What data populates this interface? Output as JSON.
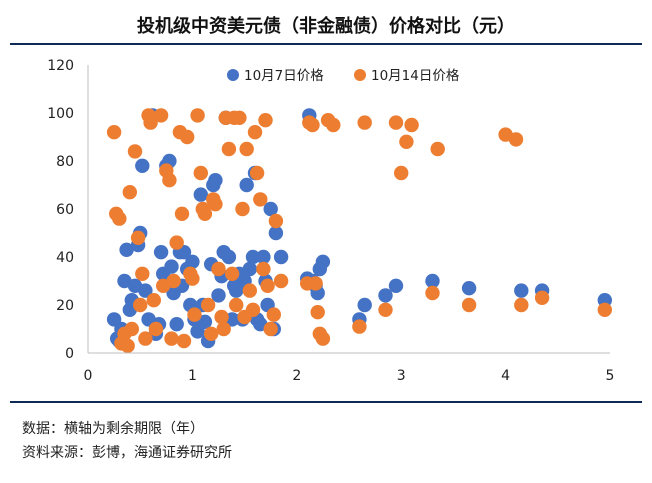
{
  "header": {
    "title": "投机级中资美元债（非金融债）价格对比（元）"
  },
  "footer": {
    "axis_note": "数据：横轴为剩余期限（年）",
    "source": "资料来源：彭博，海通证券研究所"
  },
  "colors": {
    "blue": "#4472c4",
    "orange": "#ed7d31",
    "rule": "#0d2b55",
    "axis": "#bfbfbf"
  },
  "chart_data": {
    "type": "scatter",
    "title": "",
    "xlabel": "",
    "ylabel": "",
    "xlim": [
      0,
      5
    ],
    "ylim": [
      0,
      120
    ],
    "x_ticks": [
      0,
      1,
      2,
      3,
      4,
      5
    ],
    "y_ticks": [
      0,
      20,
      40,
      60,
      80,
      100,
      120
    ],
    "grid": false,
    "legend_position": "top",
    "series": [
      {
        "name": "10月7日价格",
        "color": "#4472c4",
        "points": [
          [
            0.25,
            14
          ],
          [
            0.28,
            6
          ],
          [
            0.3,
            5
          ],
          [
            0.32,
            10
          ],
          [
            0.35,
            30
          ],
          [
            0.37,
            43
          ],
          [
            0.4,
            18
          ],
          [
            0.42,
            22
          ],
          [
            0.45,
            28
          ],
          [
            0.48,
            45
          ],
          [
            0.5,
            50
          ],
          [
            0.52,
            78
          ],
          [
            0.55,
            26
          ],
          [
            0.58,
            14
          ],
          [
            0.6,
            98
          ],
          [
            0.62,
            99
          ],
          [
            0.65,
            8
          ],
          [
            0.68,
            12
          ],
          [
            0.7,
            42
          ],
          [
            0.72,
            33
          ],
          [
            0.75,
            78
          ],
          [
            0.78,
            80
          ],
          [
            0.8,
            36
          ],
          [
            0.82,
            25
          ],
          [
            0.85,
            12
          ],
          [
            0.88,
            42
          ],
          [
            0.9,
            28
          ],
          [
            0.92,
            42
          ],
          [
            0.95,
            35
          ],
          [
            0.98,
            20
          ],
          [
            1.0,
            38
          ],
          [
            1.02,
            14
          ],
          [
            1.05,
            9
          ],
          [
            1.08,
            66
          ],
          [
            1.1,
            20
          ],
          [
            1.12,
            13
          ],
          [
            1.15,
            5
          ],
          [
            1.18,
            37
          ],
          [
            1.2,
            70
          ],
          [
            1.22,
            72
          ],
          [
            1.25,
            24
          ],
          [
            1.28,
            32
          ],
          [
            1.3,
            42
          ],
          [
            1.32,
            98
          ],
          [
            1.35,
            40
          ],
          [
            1.38,
            14
          ],
          [
            1.4,
            28
          ],
          [
            1.42,
            26
          ],
          [
            1.45,
            33
          ],
          [
            1.48,
            14
          ],
          [
            1.5,
            30
          ],
          [
            1.52,
            70
          ],
          [
            1.55,
            35
          ],
          [
            1.58,
            40
          ],
          [
            1.6,
            75
          ],
          [
            1.62,
            14
          ],
          [
            1.65,
            12
          ],
          [
            1.68,
            40
          ],
          [
            1.7,
            30
          ],
          [
            1.72,
            20
          ],
          [
            1.75,
            60
          ],
          [
            1.78,
            10
          ],
          [
            1.8,
            50
          ],
          [
            1.85,
            40
          ],
          [
            2.1,
            31
          ],
          [
            2.12,
            99
          ],
          [
            2.15,
            30
          ],
          [
            2.18,
            28
          ],
          [
            2.2,
            25
          ],
          [
            2.22,
            35
          ],
          [
            2.25,
            38
          ],
          [
            2.6,
            14
          ],
          [
            2.65,
            20
          ],
          [
            2.85,
            24
          ],
          [
            2.95,
            28
          ],
          [
            3.3,
            30
          ],
          [
            3.65,
            27
          ],
          [
            4.15,
            26
          ],
          [
            4.35,
            26
          ],
          [
            4.95,
            22
          ]
        ]
      },
      {
        "name": "10月14日价格",
        "color": "#ed7d31",
        "points": [
          [
            0.25,
            92
          ],
          [
            0.27,
            58
          ],
          [
            0.3,
            56
          ],
          [
            0.32,
            4
          ],
          [
            0.35,
            8
          ],
          [
            0.38,
            3
          ],
          [
            0.4,
            67
          ],
          [
            0.42,
            10
          ],
          [
            0.45,
            84
          ],
          [
            0.48,
            48
          ],
          [
            0.5,
            20
          ],
          [
            0.52,
            33
          ],
          [
            0.55,
            6
          ],
          [
            0.58,
            99
          ],
          [
            0.6,
            96
          ],
          [
            0.63,
            22
          ],
          [
            0.65,
            10
          ],
          [
            0.7,
            99
          ],
          [
            0.72,
            28
          ],
          [
            0.75,
            76
          ],
          [
            0.78,
            72
          ],
          [
            0.8,
            6
          ],
          [
            0.82,
            30
          ],
          [
            0.85,
            46
          ],
          [
            0.88,
            92
          ],
          [
            0.9,
            58
          ],
          [
            0.92,
            5
          ],
          [
            0.95,
            90
          ],
          [
            0.98,
            33
          ],
          [
            1.0,
            31
          ],
          [
            1.02,
            16
          ],
          [
            1.05,
            99
          ],
          [
            1.08,
            75
          ],
          [
            1.1,
            60
          ],
          [
            1.12,
            58
          ],
          [
            1.15,
            20
          ],
          [
            1.18,
            8
          ],
          [
            1.2,
            64
          ],
          [
            1.22,
            62
          ],
          [
            1.25,
            35
          ],
          [
            1.28,
            15
          ],
          [
            1.3,
            10
          ],
          [
            1.32,
            98
          ],
          [
            1.35,
            85
          ],
          [
            1.38,
            33
          ],
          [
            1.4,
            98
          ],
          [
            1.42,
            20
          ],
          [
            1.45,
            98
          ],
          [
            1.48,
            60
          ],
          [
            1.5,
            15
          ],
          [
            1.52,
            85
          ],
          [
            1.55,
            26
          ],
          [
            1.58,
            18
          ],
          [
            1.6,
            92
          ],
          [
            1.62,
            75
          ],
          [
            1.65,
            64
          ],
          [
            1.68,
            35
          ],
          [
            1.7,
            97
          ],
          [
            1.72,
            28
          ],
          [
            1.75,
            10
          ],
          [
            1.78,
            16
          ],
          [
            1.8,
            55
          ],
          [
            1.85,
            30
          ],
          [
            2.1,
            29
          ],
          [
            2.12,
            96
          ],
          [
            2.15,
            95
          ],
          [
            2.18,
            29
          ],
          [
            2.2,
            17
          ],
          [
            2.22,
            8
          ],
          [
            2.25,
            6
          ],
          [
            2.3,
            97
          ],
          [
            2.35,
            95
          ],
          [
            2.6,
            11
          ],
          [
            2.65,
            96
          ],
          [
            2.85,
            18
          ],
          [
            2.95,
            96
          ],
          [
            3.0,
            75
          ],
          [
            3.05,
            88
          ],
          [
            3.1,
            95
          ],
          [
            3.3,
            25
          ],
          [
            3.35,
            85
          ],
          [
            3.65,
            20
          ],
          [
            4.0,
            91
          ],
          [
            4.1,
            89
          ],
          [
            4.15,
            20
          ],
          [
            4.35,
            23
          ],
          [
            4.95,
            18
          ]
        ]
      }
    ]
  }
}
